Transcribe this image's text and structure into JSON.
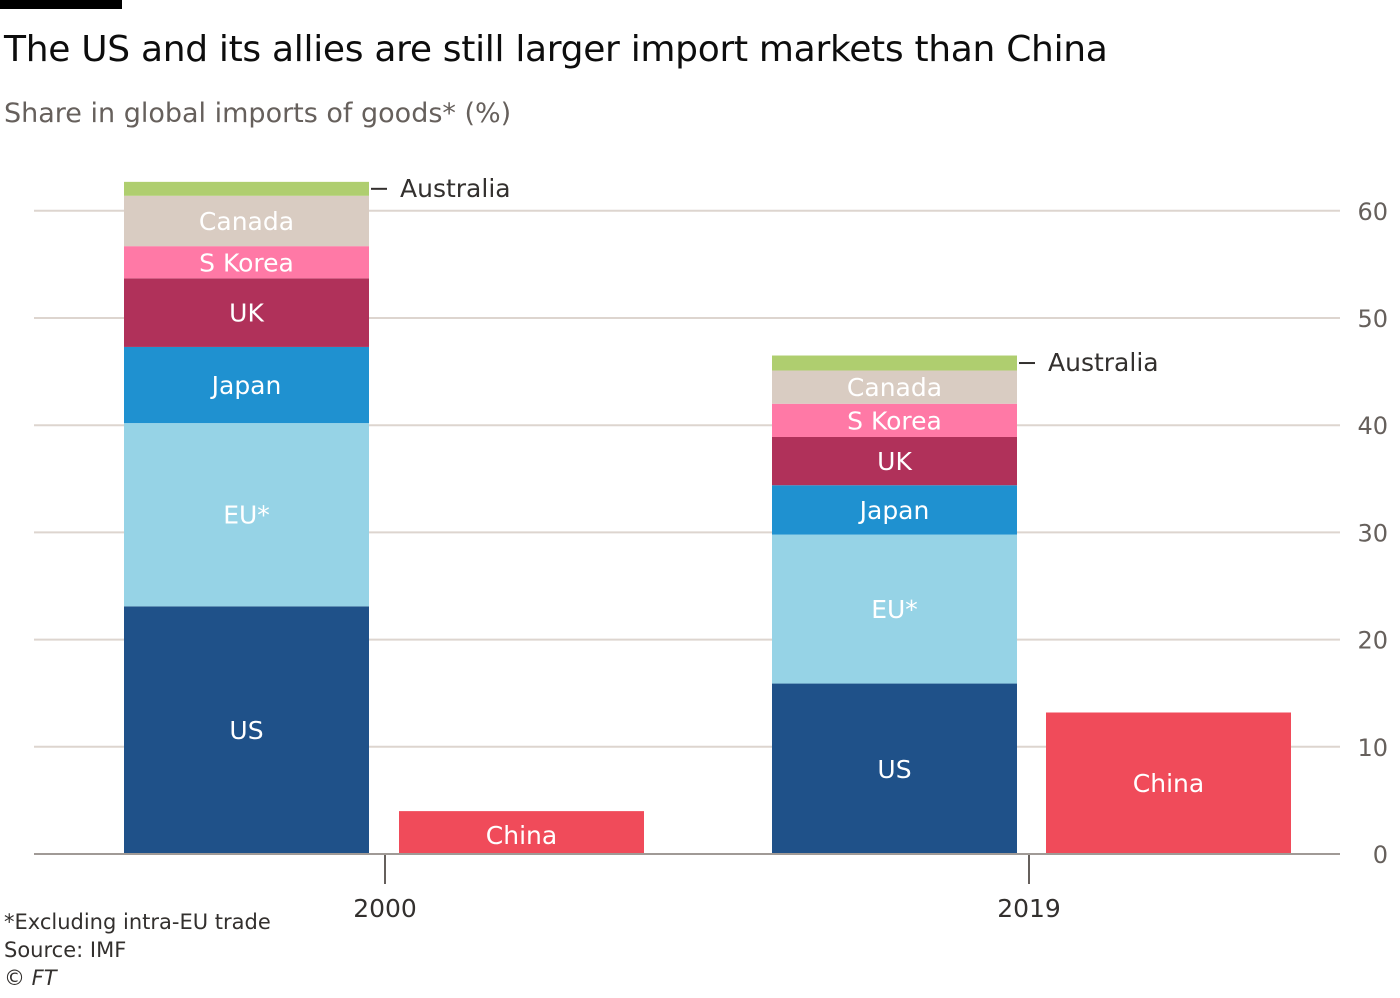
{
  "title": "The US and its allies are still larger import markets than China",
  "subtitle": "Share in global imports of goods* (%)",
  "chart_data": {
    "type": "bar",
    "stacked": true,
    "categories": [
      "2000",
      "2019"
    ],
    "ylim": [
      0,
      60
    ],
    "yticks": [
      0,
      10,
      20,
      30,
      40,
      50,
      60
    ],
    "y_axis_side": "right",
    "grid": true,
    "groups": [
      {
        "category": "2000",
        "allies_stack": [
          {
            "name": "US",
            "value": 23.1,
            "color": "#1f5189"
          },
          {
            "name": "EU*",
            "value": 17.1,
            "color": "#96d3e6"
          },
          {
            "name": "Japan",
            "value": 7.1,
            "color": "#1f91d0"
          },
          {
            "name": "UK",
            "value": 6.4,
            "color": "#b0315a"
          },
          {
            "name": "S Korea",
            "value": 3.0,
            "color": "#ff79a6"
          },
          {
            "name": "Canada",
            "value": 4.7,
            "color": "#d9ccc2"
          },
          {
            "name": "Australia",
            "value": 1.3,
            "color": "#afce6f"
          }
        ],
        "china": {
          "name": "China",
          "value": 4.0,
          "color": "#f04b5a"
        }
      },
      {
        "category": "2019",
        "allies_stack": [
          {
            "name": "US",
            "value": 15.9,
            "color": "#1f5189"
          },
          {
            "name": "EU*",
            "value": 13.9,
            "color": "#96d3e6"
          },
          {
            "name": "Japan",
            "value": 4.6,
            "color": "#1f91d0"
          },
          {
            "name": "UK",
            "value": 4.5,
            "color": "#b0315a"
          },
          {
            "name": "S Korea",
            "value": 3.1,
            "color": "#ff79a6"
          },
          {
            "name": "Canada",
            "value": 3.1,
            "color": "#d9ccc2"
          },
          {
            "name": "Australia",
            "value": 1.4,
            "color": "#afce6f"
          }
        ],
        "china": {
          "name": "China",
          "value": 13.2,
          "color": "#f04b5a"
        }
      }
    ]
  },
  "footer": {
    "note": "*Excluding intra-EU trade",
    "source": "Source: IMF",
    "credit": "© FT"
  }
}
